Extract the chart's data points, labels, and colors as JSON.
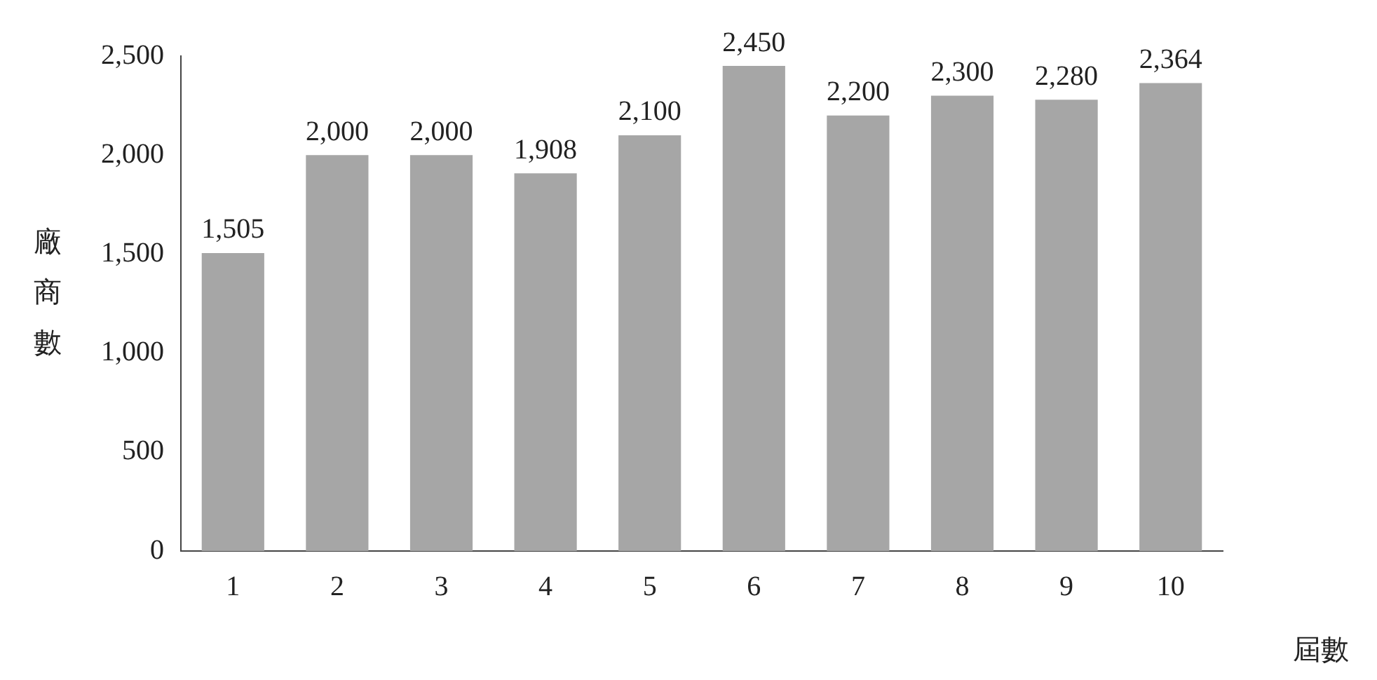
{
  "chart_data": {
    "type": "bar",
    "xlabel": "屆數",
    "ylabel": "廠商數",
    "categories": [
      "1",
      "2",
      "3",
      "4",
      "5",
      "6",
      "7",
      "8",
      "9",
      "10"
    ],
    "values": [
      1505,
      2000,
      2000,
      1908,
      2100,
      2450,
      2200,
      2300,
      2280,
      2364
    ],
    "value_labels": [
      "1,505",
      "2,000",
      "2,000",
      "1,908",
      "2,100",
      "2,450",
      "2,200",
      "2,300",
      "2,280",
      "2,364"
    ],
    "color": "#a6a6a6",
    "ylim": [
      0,
      2500
    ],
    "yticks": [
      0,
      500,
      {
        "value": 1000,
        "label": "1,000"
      },
      {
        "value": 1500,
        "label": "1,500"
      },
      {
        "value": 2000,
        "label": "2,000"
      },
      {
        "value": 2500,
        "label": "2,500"
      }
    ],
    "grid": false,
    "legend": false
  }
}
